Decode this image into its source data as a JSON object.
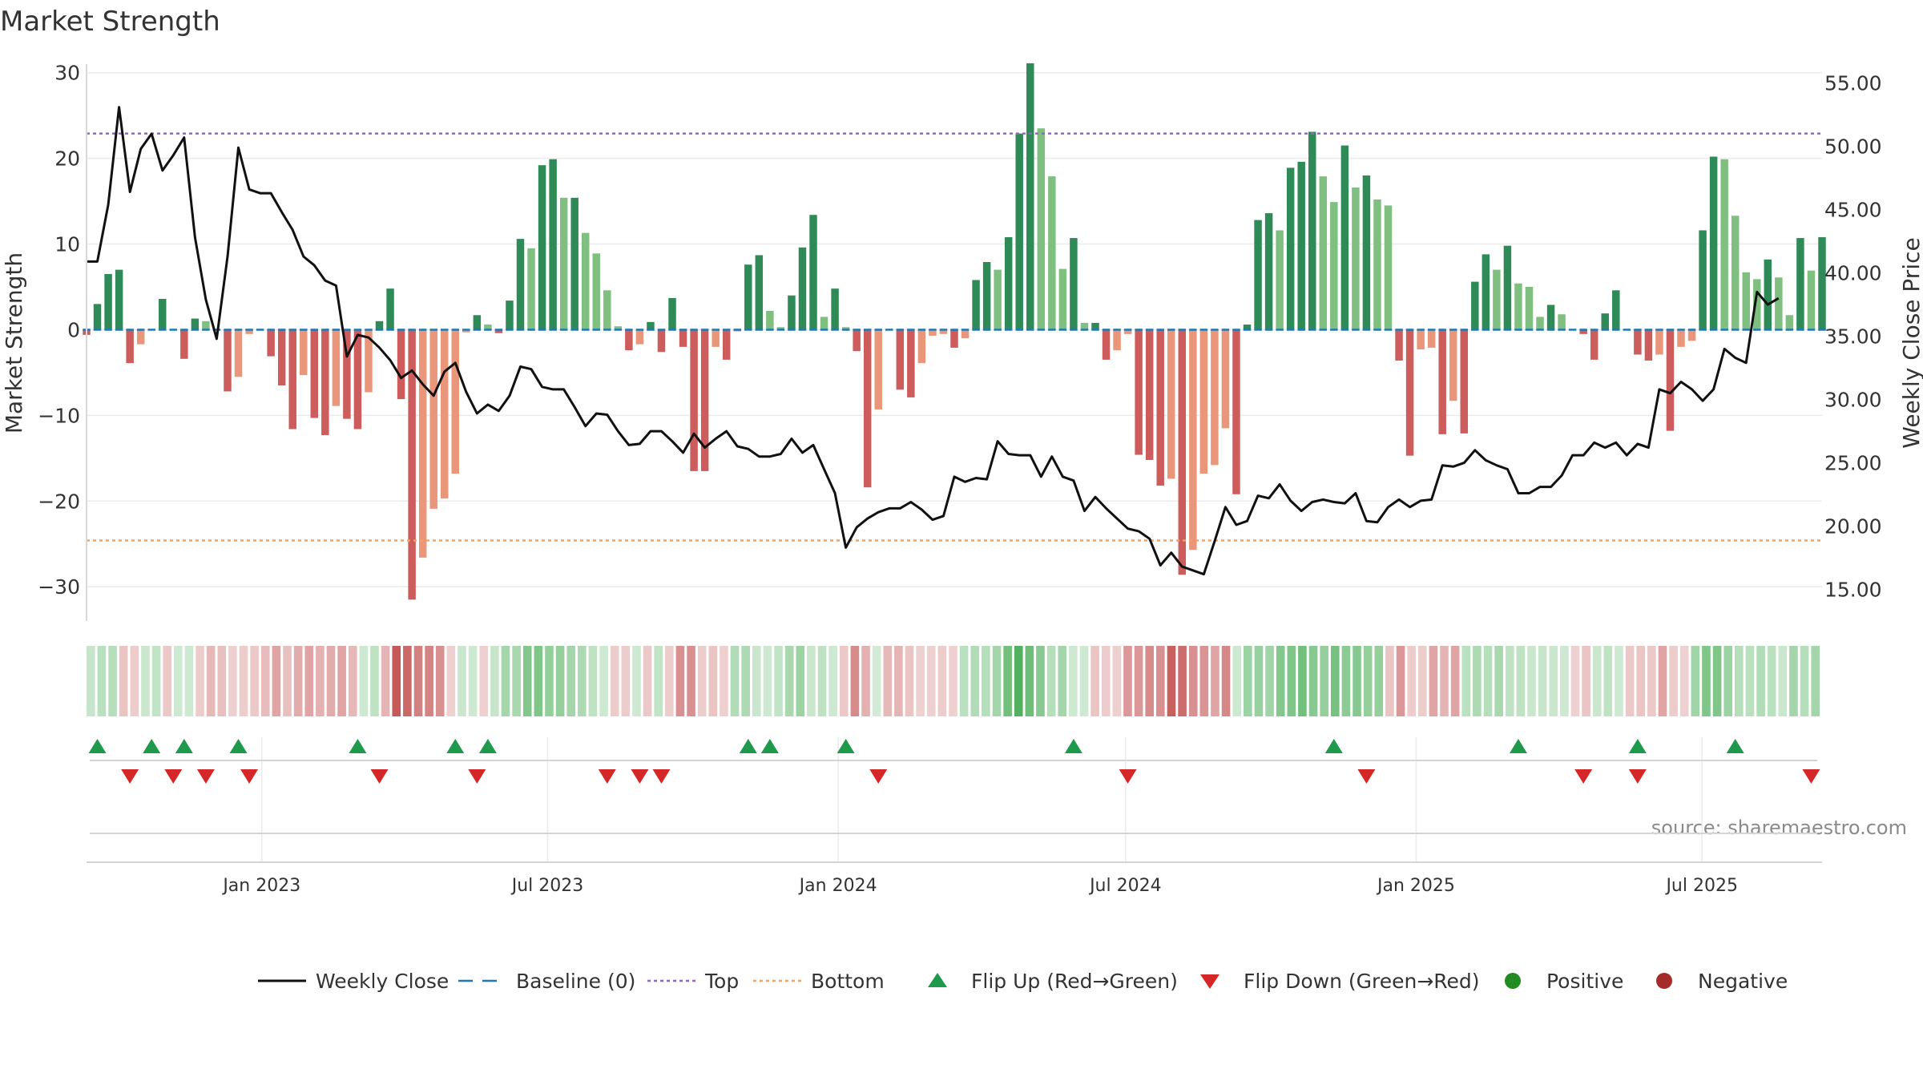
{
  "page": {
    "title": "Market Strength",
    "source": "source: sharemaestro.com"
  },
  "colors": {
    "background": "#ffffff",
    "grid": "#ebebeb",
    "axis_line": "#d9d9d9",
    "text": "#333333",
    "close_line": "#111111",
    "baseline": "#1f77b4",
    "top": "#9467bd",
    "bottom": "#f4a261",
    "green_dark": "#2e8b57",
    "green_light": "#7fbf7f",
    "red_dark": "#cd5c5c",
    "red_light": "#e9967a",
    "flip_up": "#1f9a4c",
    "flip_down": "#d62728",
    "positive": "#228b22",
    "negative": "#a52a2a"
  },
  "chart_data": {
    "type": "bar",
    "title": "Market Strength",
    "ylabel_left": "Market Strength",
    "ylabel_right": "Weekly Close Price",
    "ylim_left": [
      -34,
      31
    ],
    "ylim_right": [
      12.5,
      56.5
    ],
    "y_ticks_left": [
      "30",
      "20",
      "10",
      "0",
      "−10",
      "−20",
      "−30"
    ],
    "y_tick_values_left": [
      30,
      20,
      10,
      0,
      -10,
      -20,
      -30
    ],
    "y_ticks_right": [
      "55.00",
      "50.00",
      "45.00",
      "40.00",
      "35.00",
      "30.00",
      "25.00",
      "20.00",
      "15.00"
    ],
    "y_tick_values_right": [
      55,
      50,
      45,
      40,
      35,
      30,
      25,
      20,
      15
    ],
    "x_start": "2022-09-12",
    "x_end": "2025-09-15",
    "x_ticks": [
      "Jan 2023",
      "Jul 2023",
      "Jan 2024",
      "Jul 2024",
      "Jan 2025",
      "Jul 2025"
    ],
    "x_tick_dates": [
      "2023-01-01",
      "2023-07-01",
      "2024-01-01",
      "2024-07-01",
      "2025-01-01",
      "2025-07-01"
    ],
    "top_threshold": 22.9,
    "bottom_threshold": -24.6,
    "grid": true,
    "legend_position": "bottom",
    "series": [
      {
        "name": "Market Strength",
        "values": [
          -0.6,
          3.0,
          6.5,
          7.0,
          -3.9,
          -1.7,
          0,
          3.6,
          0,
          -3.4,
          1.3,
          1.0,
          0,
          -7.2,
          -5.5,
          -0.5,
          0,
          -3.1,
          -6.5,
          -11.6,
          -5.3,
          -10.3,
          -12.3,
          -8.9,
          -10.4,
          -11.6,
          -7.3,
          1.0,
          4.8,
          -8.1,
          -31.5,
          -26.6,
          -20.9,
          -19.7,
          -16.8,
          -0.3,
          1.7,
          0.6,
          -0.4,
          3.4,
          10.6,
          9.5,
          19.2,
          19.9,
          15.4,
          15.4,
          11.3,
          8.9,
          4.6,
          0.4,
          -2.4,
          -1.7,
          0.9,
          -2.6,
          3.7,
          -2.0,
          -16.5,
          -16.5,
          -2.0,
          -3.5,
          -0.2,
          7.6,
          8.7,
          2.2,
          0.3,
          4.0,
          9.6,
          13.4,
          1.5,
          4.8,
          0.3,
          -2.5,
          -18.4,
          -9.3,
          0,
          -7.0,
          -7.9,
          -3.9,
          -0.7,
          -0.5,
          -2.1,
          -1.0,
          5.8,
          7.9,
          7.0,
          10.8,
          22.9,
          31.1,
          23.5,
          17.9,
          7.1,
          10.7,
          0.8,
          0.8,
          -3.5,
          -2.4,
          -0.5,
          -14.6,
          -15.2,
          -18.2,
          -17.4,
          -28.6,
          -25.7,
          -16.8,
          -15.8,
          -11.5,
          -19.2,
          0.6,
          12.8,
          13.6,
          11.6,
          18.9,
          19.6,
          23.1,
          17.9,
          14.9,
          21.5,
          16.6,
          18.0,
          15.2,
          14.5,
          -3.6,
          -14.7,
          -2.3,
          -2.1,
          -12.2,
          -8.3,
          -12.1,
          5.6,
          8.8,
          7.0,
          9.8,
          5.4,
          5.0,
          1.5,
          2.9,
          1.8,
          0,
          -0.5,
          -3.5,
          1.9,
          4.6,
          0,
          -2.9,
          -3.6,
          -2.9,
          -11.8,
          -2.0,
          -1.3,
          11.6,
          20.2,
          19.9,
          13.3,
          6.7,
          5.9,
          8.2,
          6.1,
          1.7,
          10.7,
          6.9,
          10.8
        ]
      },
      {
        "name": "Weekly Close",
        "values": [
          40.9,
          40.9,
          45.4,
          53.1,
          46.4,
          49.8,
          51.0,
          48.1,
          49.3,
          50.7,
          42.8,
          37.9,
          34.8,
          41.3,
          49.9,
          46.6,
          46.3,
          46.3,
          44.8,
          43.4,
          41.3,
          40.6,
          39.4,
          39.0,
          33.4,
          35.1,
          34.9,
          34.1,
          33.1,
          31.7,
          32.3,
          31.2,
          30.3,
          32.2,
          32.9,
          30.6,
          28.9,
          29.6,
          29.1,
          30.3,
          32.6,
          32.4,
          31.0,
          30.8,
          30.8,
          29.4,
          27.9,
          28.9,
          28.8,
          27.5,
          26.4,
          26.5,
          27.5,
          27.5,
          26.7,
          25.8,
          27.3,
          26.2,
          26.9,
          27.5,
          26.3,
          26.1,
          25.5,
          25.5,
          25.7,
          26.9,
          25.8,
          26.4,
          24.5,
          22.6,
          18.3,
          19.9,
          20.6,
          21.1,
          21.4,
          21.4,
          21.9,
          21.3,
          20.5,
          20.8,
          23.9,
          23.5,
          23.8,
          23.7,
          26.7,
          25.7,
          25.6,
          25.6,
          23.9,
          25.5,
          23.9,
          23.6,
          21.2,
          22.3,
          21.4,
          20.6,
          19.8,
          19.6,
          19.0,
          16.9,
          17.9,
          16.8,
          16.5,
          16.2,
          18.8,
          21.5,
          20.1,
          20.4,
          22.4,
          22.2,
          23.3,
          22.0,
          21.2,
          21.9,
          22.1,
          21.9,
          21.8,
          22.6,
          20.4,
          20.3,
          21.5,
          22.1,
          21.5,
          22.0,
          22.1,
          24.8,
          24.7,
          25.0,
          26.0,
          25.2,
          24.8,
          24.5,
          22.6,
          22.6,
          23.1,
          23.1,
          24.0,
          25.6,
          25.6,
          26.6,
          26.2,
          26.6,
          25.6,
          26.5,
          26.2,
          30.8,
          30.5,
          31.4,
          30.8,
          29.9,
          30.8,
          34.0,
          33.3,
          32.9,
          38.5,
          37.5,
          38.0
        ]
      }
    ],
    "flip_up_indices": [
      1,
      6,
      9,
      14,
      25,
      34,
      37,
      61,
      63,
      70,
      91,
      115,
      132,
      143,
      152
    ],
    "flip_down_indices": [
      4,
      8,
      11,
      15,
      27,
      36,
      48,
      51,
      53,
      73,
      96,
      118,
      138,
      143,
      159
    ],
    "strength_strip_values": [
      3,
      6,
      7,
      -4,
      -2,
      2,
      4,
      -3,
      1,
      1,
      -2,
      -7,
      -5,
      -1,
      -2,
      -3,
      -6,
      -12,
      -5,
      -10,
      -12,
      -9,
      -10,
      -12,
      -7,
      1,
      5,
      -8,
      -31,
      -27,
      -21,
      -20,
      -17,
      -1,
      2,
      1,
      -1,
      3,
      11,
      10,
      19,
      20,
      15,
      15,
      11,
      9,
      5,
      1,
      -2,
      -2,
      1,
      -3,
      4,
      -2,
      -17,
      -17,
      -2,
      -4,
      -1,
      8,
      9,
      2,
      1,
      4,
      10,
      13,
      2,
      5,
      1,
      -3,
      -18,
      -9,
      0,
      -7,
      -8,
      -4,
      -1,
      -1,
      -2,
      -1,
      6,
      8,
      7,
      11,
      23,
      31,
      24,
      18,
      7,
      11,
      1,
      1,
      -4,
      -2,
      -1,
      -15,
      -15,
      -18,
      -17,
      -29,
      -26,
      -17,
      -16,
      -12,
      -19,
      1,
      13,
      14,
      12,
      19,
      20,
      23,
      18,
      15,
      22,
      17,
      18,
      15,
      15,
      -4,
      -15,
      -2,
      -2,
      -12,
      -8,
      -12,
      6,
      9,
      7,
      10,
      5,
      5,
      2,
      3,
      2,
      1,
      -1,
      -4,
      2,
      5,
      1,
      -3,
      -4,
      -3,
      -12,
      -2,
      -1,
      12,
      20,
      20,
      13,
      7,
      6,
      8,
      6,
      2,
      11,
      7,
      11
    ]
  },
  "legend": [
    {
      "label": "Weekly Close",
      "kind": "line"
    },
    {
      "label": "Baseline (0)",
      "kind": "dash"
    },
    {
      "label": "Top",
      "kind": "dot-top"
    },
    {
      "label": "Bottom",
      "kind": "dot-bottom"
    },
    {
      "label": "Flip Up (Red→Green)",
      "kind": "tri-up"
    },
    {
      "label": "Flip Down (Green→Red)",
      "kind": "tri-down"
    },
    {
      "label": "Positive",
      "kind": "dot-pos"
    },
    {
      "label": "Negative",
      "kind": "dot-neg"
    }
  ]
}
